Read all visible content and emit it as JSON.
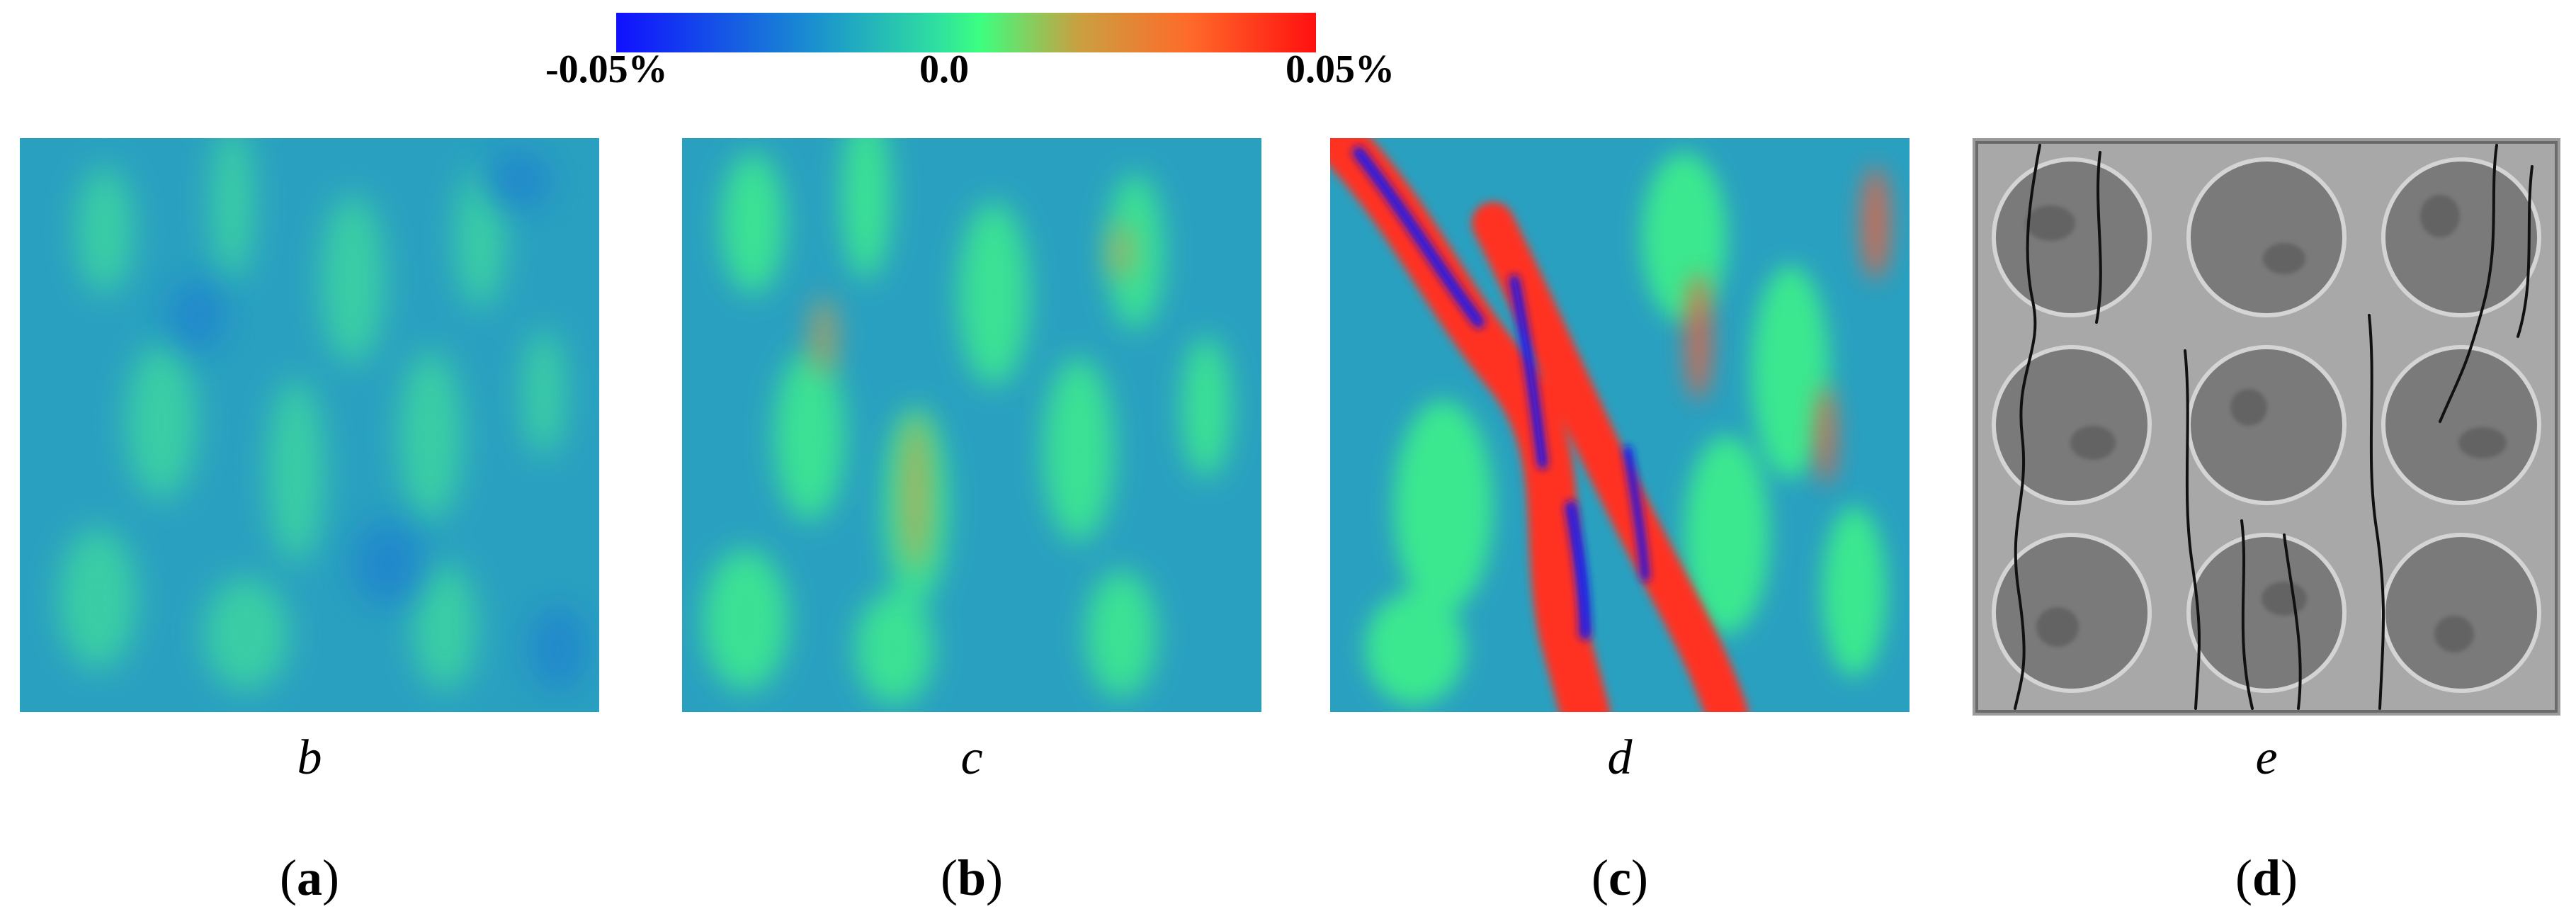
{
  "colorbar": {
    "min_label": "-0.05%",
    "mid_label": "0.0",
    "max_label": "0.05%",
    "colors": [
      "#1010ff",
      "#1a8fd0",
      "#3cff80",
      "#ff6a2a",
      "#ff1010"
    ]
  },
  "panels": [
    {
      "sublabel": "b",
      "caption_open": "(",
      "caption_letter": "a",
      "caption_close": ")"
    },
    {
      "sublabel": "c",
      "caption_open": "(",
      "caption_letter": "b",
      "caption_close": ")"
    },
    {
      "sublabel": "d",
      "caption_open": "(",
      "caption_letter": "c",
      "caption_close": ")"
    },
    {
      "sublabel": "e",
      "caption_open": "(",
      "caption_letter": "d",
      "caption_close": ")"
    }
  ]
}
